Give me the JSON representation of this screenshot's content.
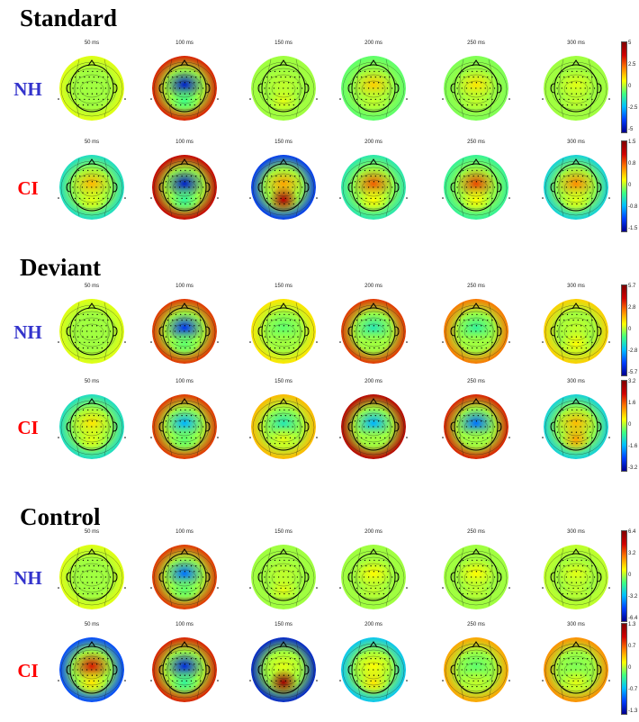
{
  "colormap": [
    "#00008f",
    "#0040ff",
    "#00bfff",
    "#40ff80",
    "#ffff00",
    "#ff8000",
    "#d00000",
    "#800000"
  ],
  "sections": [
    {
      "title": "Standard",
      "rows": [
        {
          "group": "NH",
          "label_color": "#3333cc",
          "colorbar_ticks": [
            "5",
            "2.5",
            "0",
            "-2.5",
            "-5"
          ],
          "maps": [
            {
              "time": "50 ms",
              "rim": 0.1,
              "central": 0.0,
              "posterior": 0.0
            },
            {
              "time": "100 ms",
              "rim": 0.65,
              "central": -0.85,
              "posterior": -0.15
            },
            {
              "time": "150 ms",
              "rim": 0.0,
              "central": 0.05,
              "posterior": 0.1
            },
            {
              "time": "200 ms",
              "rim": -0.1,
              "central": 0.25,
              "posterior": 0.05
            },
            {
              "time": "250 ms",
              "rim": -0.05,
              "central": 0.2,
              "posterior": 0.05
            },
            {
              "time": "300 ms",
              "rim": 0.0,
              "central": 0.1,
              "posterior": 0.05
            }
          ]
        },
        {
          "group": "CI",
          "label_color": "#ff0000",
          "colorbar_ticks": [
            "1.5",
            "0.8",
            "0",
            "-0.8",
            "-1.5"
          ],
          "maps": [
            {
              "time": "50 ms",
              "rim": -0.3,
              "central": 0.3,
              "posterior": 0.1
            },
            {
              "time": "100 ms",
              "rim": 0.75,
              "central": -0.85,
              "posterior": -0.2
            },
            {
              "time": "150 ms",
              "rim": -0.75,
              "central": 0.35,
              "posterior": 0.8
            },
            {
              "time": "200 ms",
              "rim": -0.25,
              "central": 0.5,
              "posterior": 0.15
            },
            {
              "time": "250 ms",
              "rim": -0.2,
              "central": 0.55,
              "posterior": 0.15
            },
            {
              "time": "300 ms",
              "rim": -0.35,
              "central": 0.4,
              "posterior": 0.1
            }
          ]
        }
      ]
    },
    {
      "title": "Deviant",
      "rows": [
        {
          "group": "NH",
          "label_color": "#3333cc",
          "colorbar_ticks": [
            "5.7",
            "2.8",
            "0",
            "-2.8",
            "-5.7"
          ],
          "maps": [
            {
              "time": "50 ms",
              "rim": 0.1,
              "central": 0.0,
              "posterior": 0.0
            },
            {
              "time": "100 ms",
              "rim": 0.6,
              "central": -0.75,
              "posterior": -0.1
            },
            {
              "time": "150 ms",
              "rim": 0.2,
              "central": -0.1,
              "posterior": 0.0
            },
            {
              "time": "200 ms",
              "rim": 0.6,
              "central": -0.25,
              "posterior": 0.0
            },
            {
              "time": "250 ms",
              "rim": 0.45,
              "central": -0.2,
              "posterior": 0.0
            },
            {
              "time": "300 ms",
              "rim": 0.25,
              "central": 0.05,
              "posterior": 0.15
            }
          ]
        },
        {
          "group": "CI",
          "label_color": "#ff0000",
          "colorbar_ticks": [
            "3.2",
            "1.6",
            "0",
            "-1.6",
            "-3.2"
          ],
          "maps": [
            {
              "time": "50 ms",
              "rim": -0.3,
              "central": 0.2,
              "posterior": 0.1
            },
            {
              "time": "100 ms",
              "rim": 0.6,
              "central": -0.45,
              "posterior": -0.1
            },
            {
              "time": "150 ms",
              "rim": 0.3,
              "central": -0.25,
              "posterior": 0.1
            },
            {
              "time": "200 ms",
              "rim": 0.8,
              "central": -0.45,
              "posterior": 0.0
            },
            {
              "time": "250 ms",
              "rim": 0.65,
              "central": -0.6,
              "posterior": 0.0
            },
            {
              "time": "300 ms",
              "rim": -0.35,
              "central": 0.3,
              "posterior": 0.35
            }
          ]
        }
      ]
    },
    {
      "title": "Control",
      "rows": [
        {
          "group": "NH",
          "label_color": "#3333cc",
          "colorbar_ticks": [
            "6.4",
            "3.2",
            "0",
            "-3.2",
            "-6.4"
          ],
          "maps": [
            {
              "time": "50 ms",
              "rim": 0.1,
              "central": 0.0,
              "posterior": 0.0
            },
            {
              "time": "100 ms",
              "rim": 0.6,
              "central": -0.6,
              "posterior": -0.1
            },
            {
              "time": "150 ms",
              "rim": 0.0,
              "central": 0.05,
              "posterior": 0.1
            },
            {
              "time": "200 ms",
              "rim": 0.0,
              "central": 0.15,
              "posterior": 0.05
            },
            {
              "time": "250 ms",
              "rim": 0.0,
              "central": 0.15,
              "posterior": 0.05
            },
            {
              "time": "300 ms",
              "rim": 0.05,
              "central": 0.1,
              "posterior": 0.05
            }
          ]
        },
        {
          "group": "CI",
          "label_color": "#ff0000",
          "colorbar_ticks": [
            "1.3",
            "0.7",
            "0",
            "-0.7",
            "-1.3"
          ],
          "maps": [
            {
              "time": "50 ms",
              "rim": -0.7,
              "central": 0.65,
              "posterior": 0.2
            },
            {
              "time": "100 ms",
              "rim": 0.65,
              "central": -0.8,
              "posterior": -0.2
            },
            {
              "time": "150 ms",
              "rim": -0.85,
              "central": 0.1,
              "posterior": 0.9
            },
            {
              "time": "200 ms",
              "rim": -0.4,
              "central": 0.15,
              "posterior": 0.2
            },
            {
              "time": "250 ms",
              "rim": 0.35,
              "central": -0.1,
              "posterior": 0.05
            },
            {
              "time": "300 ms",
              "rim": 0.4,
              "central": -0.05,
              "posterior": 0.1
            }
          ]
        }
      ]
    }
  ]
}
